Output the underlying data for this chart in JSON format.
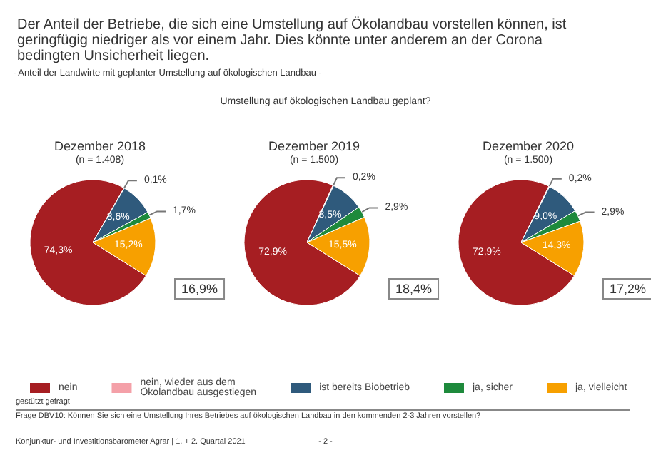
{
  "chart_data": {
    "type": "pie",
    "title": "Der Anteil der Betriebe, die sich eine Umstellung auf Ökolandbau vorstellen können, ist geringfügig niedriger als vor einem Jahr. Dies könnte unter anderem an der Corona bedingten Unsicherheit liegen.",
    "subtitle": "- Anteil der Landwirte mit geplanter Umstellung auf ökologischen Landbau -",
    "legend": "bottom",
    "categories": [
      "nein",
      "nein, wieder aus dem Ökolandbau ausgestiegen",
      "ist bereits Biobetrieb",
      "ja, sicher",
      "ja, vielleicht"
    ],
    "colors": [
      "#a61e22",
      "#f4a0a8",
      "#2f5a7c",
      "#1e8a3c",
      "#f7a000"
    ],
    "series": [
      {
        "name": "Dezember 2018",
        "values": [
          74.3,
          0.1,
          8.6,
          1.7,
          15.2
        ],
        "value_labels": [
          "74,3%",
          "0,1%",
          "8,6%",
          "1,7%",
          "15,2%"
        ]
      },
      {
        "name": "Dezember 2019",
        "values": [
          72.9,
          0.2,
          8.5,
          2.9,
          15.5
        ],
        "value_labels": [
          "72,9%",
          "0,2%",
          "8,5%",
          "2,9%",
          "15,5%"
        ]
      },
      {
        "name": "Dezember 2020",
        "values": [
          72.9,
          0.2,
          9.0,
          2.9,
          14.3
        ],
        "value_labels": [
          "72,9%",
          "0,2%",
          "9,0%",
          "2,9%",
          "14,3%"
        ]
      }
    ],
    "annotations": [
      "Umstellung auf ökologischen Landbau geplant?",
      "(n = 1.408)",
      "(n = 1.500)",
      "(n = 1.500)",
      "16,9%",
      "18,4%",
      "17,2%",
      "gestützt gefragt",
      "Frage DBV10: Können Sie sich eine Umstellung Ihres Betriebes auf ökologischen Landbau in den kommenden 2-3 Jahren vorstellen?",
      "Konjunktur- und Investitionsbarometer Agrar | 1. + 2. Quartal 2021",
      "- 2 -"
    ]
  }
}
